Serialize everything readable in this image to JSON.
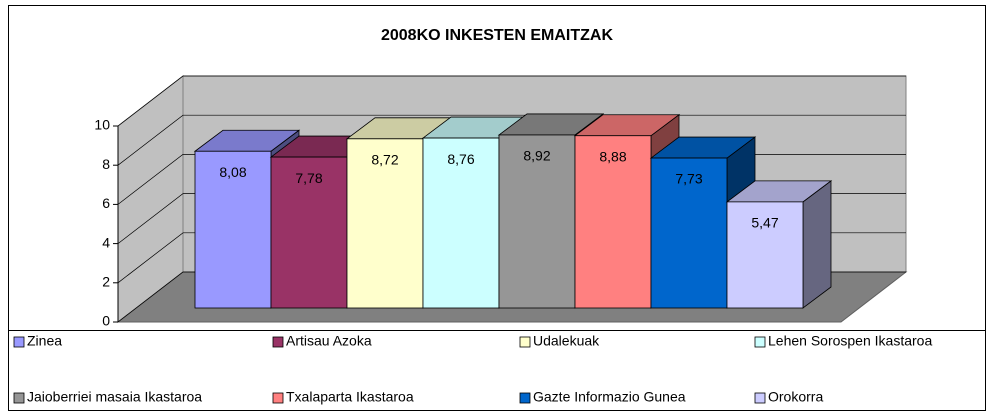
{
  "chart_data": {
    "type": "bar3d",
    "title": "2008KO INKESTEN EMAITZAK",
    "series": [
      {
        "name": "Zinea",
        "color": "#9999ff",
        "values": [
          8.08
        ],
        "value_labels": [
          "8,08"
        ]
      },
      {
        "name": "Artisau Azoka",
        "color": "#993366",
        "values": [
          7.78
        ],
        "value_labels": [
          "7,78"
        ]
      },
      {
        "name": "Udalekuak",
        "color": "#ffffcc",
        "values": [
          8.72
        ],
        "value_labels": [
          "8,72"
        ]
      },
      {
        "name": "Lehen Sorospen Ikastaroa",
        "color": "#ccffff",
        "values": [
          8.76
        ],
        "value_labels": [
          "8,76"
        ]
      },
      {
        "name": "Jaioberriei masaia Ikastaroa",
        "color": "#969696",
        "values": [
          8.92
        ],
        "value_labels": [
          "8,92"
        ]
      },
      {
        "name": "Txalaparta Ikastaroa",
        "color": "#ff8080",
        "values": [
          8.88
        ],
        "value_labels": [
          "8,88"
        ]
      },
      {
        "name": "Gazte Informazio Gunea",
        "color": "#0066cc",
        "values": [
          7.73
        ],
        "value_labels": [
          "7,73"
        ]
      },
      {
        "name": "Orokorra",
        "color": "#ccccff",
        "values": [
          5.47
        ],
        "value_labels": [
          "5,47"
        ]
      }
    ],
    "ylim": [
      0,
      10
    ],
    "yticks": [
      0,
      2,
      4,
      6,
      8,
      10
    ],
    "grid": true,
    "legend": "bottom"
  }
}
